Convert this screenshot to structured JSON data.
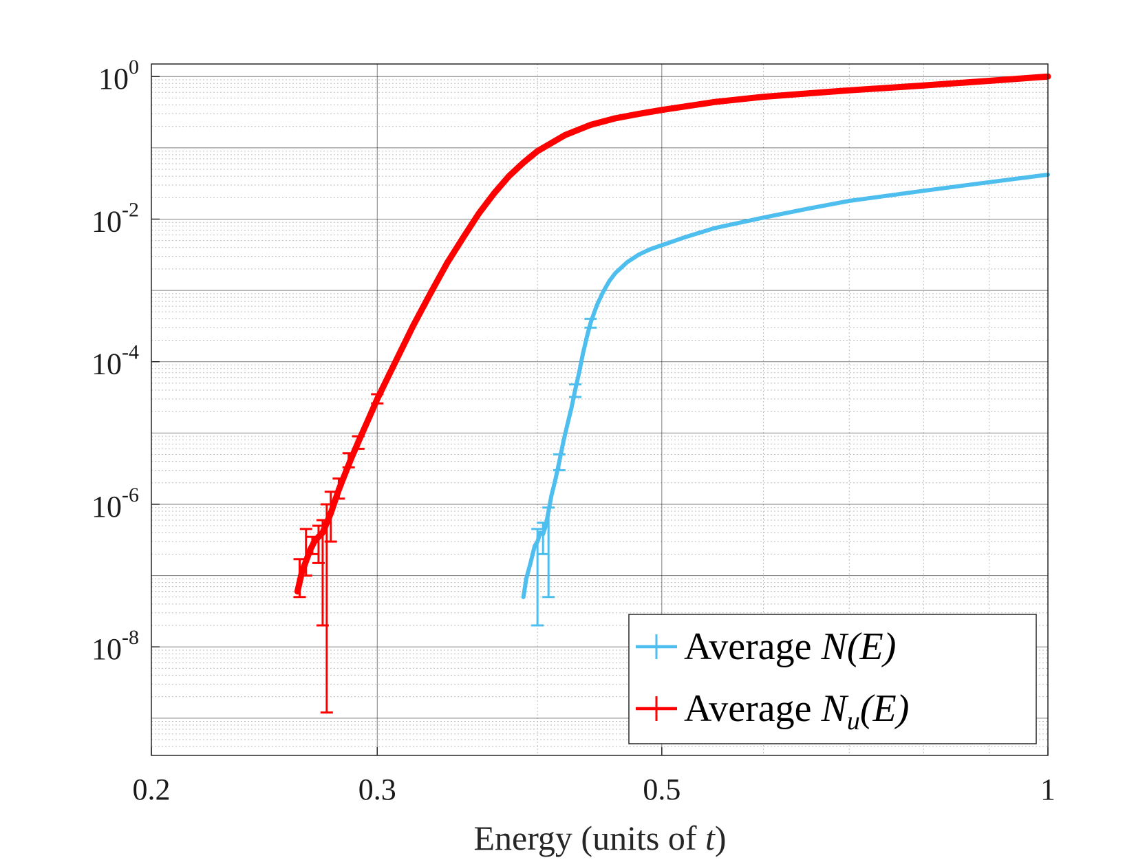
{
  "chart_data": {
    "type": "line",
    "title": "",
    "xlabel": "Energy (units of t)",
    "xlabel_parts": {
      "prefix": "Energy (units of ",
      "var": "t",
      "suffix": ")"
    },
    "ylabel": "",
    "xscale": "log",
    "yscale": "log",
    "xlim": [
      0.2,
      1.0
    ],
    "ylim": [
      3e-10,
      1.5
    ],
    "grid": true,
    "minor_grid": true,
    "legend_position": "bottom-right",
    "x_ticks": [
      {
        "value": 0.2,
        "label": "0.2"
      },
      {
        "value": 0.3,
        "label": "0.3"
      },
      {
        "value": 0.5,
        "label": "0.5"
      },
      {
        "value": 1.0,
        "label": "1"
      }
    ],
    "y_ticks": [
      {
        "value": 1,
        "base": "10",
        "exp": "0"
      },
      {
        "value": 0.01,
        "base": "10",
        "exp": "-2"
      },
      {
        "value": 0.0001,
        "base": "10",
        "exp": "-4"
      },
      {
        "value": 1e-06,
        "base": "10",
        "exp": "-6"
      },
      {
        "value": 1e-08,
        "base": "10",
        "exp": "-8"
      }
    ],
    "series": [
      {
        "name": "Average N(E)",
        "legend_parts": {
          "text": "Average ",
          "math": "N(E)",
          "sub": ""
        },
        "color": "#4DBEEE",
        "x": [
          0.39,
          0.392,
          0.395,
          0.398,
          0.4,
          0.402,
          0.404,
          0.406,
          0.408,
          0.41,
          0.413,
          0.416,
          0.419,
          0.422,
          0.425,
          0.428,
          0.431,
          0.434,
          0.437,
          0.44,
          0.445,
          0.45,
          0.455,
          0.46,
          0.47,
          0.48,
          0.49,
          0.5,
          0.52,
          0.55,
          0.6,
          0.65,
          0.7,
          0.8,
          0.9,
          1.0
        ],
        "y": [
          5e-08,
          9e-08,
          1.5e-07,
          2.6e-07,
          3e-07,
          4e-07,
          3.8e-07,
          5e-07,
          8e-07,
          1.3e-06,
          2.2e-06,
          4e-06,
          7.5e-06,
          1.3e-05,
          2.2e-05,
          4e-05,
          7e-05,
          0.00013,
          0.00022,
          0.00035,
          0.00062,
          0.00095,
          0.00135,
          0.00175,
          0.0025,
          0.0032,
          0.0038,
          0.0043,
          0.0055,
          0.0075,
          0.0105,
          0.014,
          0.018,
          0.025,
          0.033,
          0.042
        ],
        "error_bars": [
          {
            "x": 0.4,
            "lo": 2e-08,
            "hi": 4.5e-07
          },
          {
            "x": 0.404,
            "lo": 2e-07,
            "hi": 5.5e-07
          },
          {
            "x": 0.408,
            "lo": 5e-08,
            "hi": 9e-07
          },
          {
            "x": 0.416,
            "lo": 3e-06,
            "hi": 5e-06
          },
          {
            "x": 0.428,
            "lo": 3.2e-05,
            "hi": 4.8e-05
          },
          {
            "x": 0.44,
            "lo": 0.0003,
            "hi": 0.0004
          }
        ]
      },
      {
        "name": "Average N_u(E)",
        "legend_parts": {
          "text": "Average ",
          "math": "N",
          "sub": "u",
          "math_after": "(E)"
        },
        "color": "#FF0000",
        "x": [
          0.26,
          0.262,
          0.264,
          0.266,
          0.268,
          0.27,
          0.272,
          0.274,
          0.276,
          0.278,
          0.28,
          0.283,
          0.286,
          0.29,
          0.295,
          0.3,
          0.31,
          0.32,
          0.33,
          0.34,
          0.35,
          0.36,
          0.37,
          0.38,
          0.39,
          0.4,
          0.42,
          0.44,
          0.46,
          0.48,
          0.5,
          0.55,
          0.6,
          0.7,
          0.8,
          0.9,
          1.0
        ],
        "y": [
          6e-08,
          1.1e-07,
          1.6e-07,
          2.3e-07,
          3e-07,
          3.5e-07,
          4e-07,
          5.5e-07,
          7.5e-07,
          1.1e-06,
          1.6e-06,
          2.6e-06,
          4.2e-06,
          7.5e-06,
          1.5e-05,
          3e-05,
          0.0001,
          0.00032,
          0.0009,
          0.0024,
          0.0055,
          0.012,
          0.023,
          0.04,
          0.062,
          0.09,
          0.15,
          0.21,
          0.26,
          0.3,
          0.34,
          0.44,
          0.52,
          0.64,
          0.75,
          0.87,
          1.0
        ],
        "error_bars": [
          {
            "x": 0.261,
            "lo": 5e-08,
            "hi": 1.7e-07
          },
          {
            "x": 0.264,
            "lo": 1e-07,
            "hi": 4.5e-07
          },
          {
            "x": 0.267,
            "lo": 2e-07,
            "hi": 3.5e-07
          },
          {
            "x": 0.27,
            "lo": 1.5e-07,
            "hi": 5e-07
          },
          {
            "x": 0.272,
            "lo": 2e-08,
            "hi": 6e-07
          },
          {
            "x": 0.274,
            "lo": 1.2e-09,
            "hi": 1e-06
          },
          {
            "x": 0.276,
            "lo": 3e-07,
            "hi": 1.5e-06
          },
          {
            "x": 0.28,
            "lo": 1.2e-06,
            "hi": 2.3e-06
          },
          {
            "x": 0.285,
            "lo": 3.3e-06,
            "hi": 5.2e-06
          },
          {
            "x": 0.29,
            "lo": 6e-06,
            "hi": 9e-06
          },
          {
            "x": 0.3,
            "lo": 2.6e-05,
            "hi": 3.5e-05
          }
        ]
      }
    ]
  }
}
